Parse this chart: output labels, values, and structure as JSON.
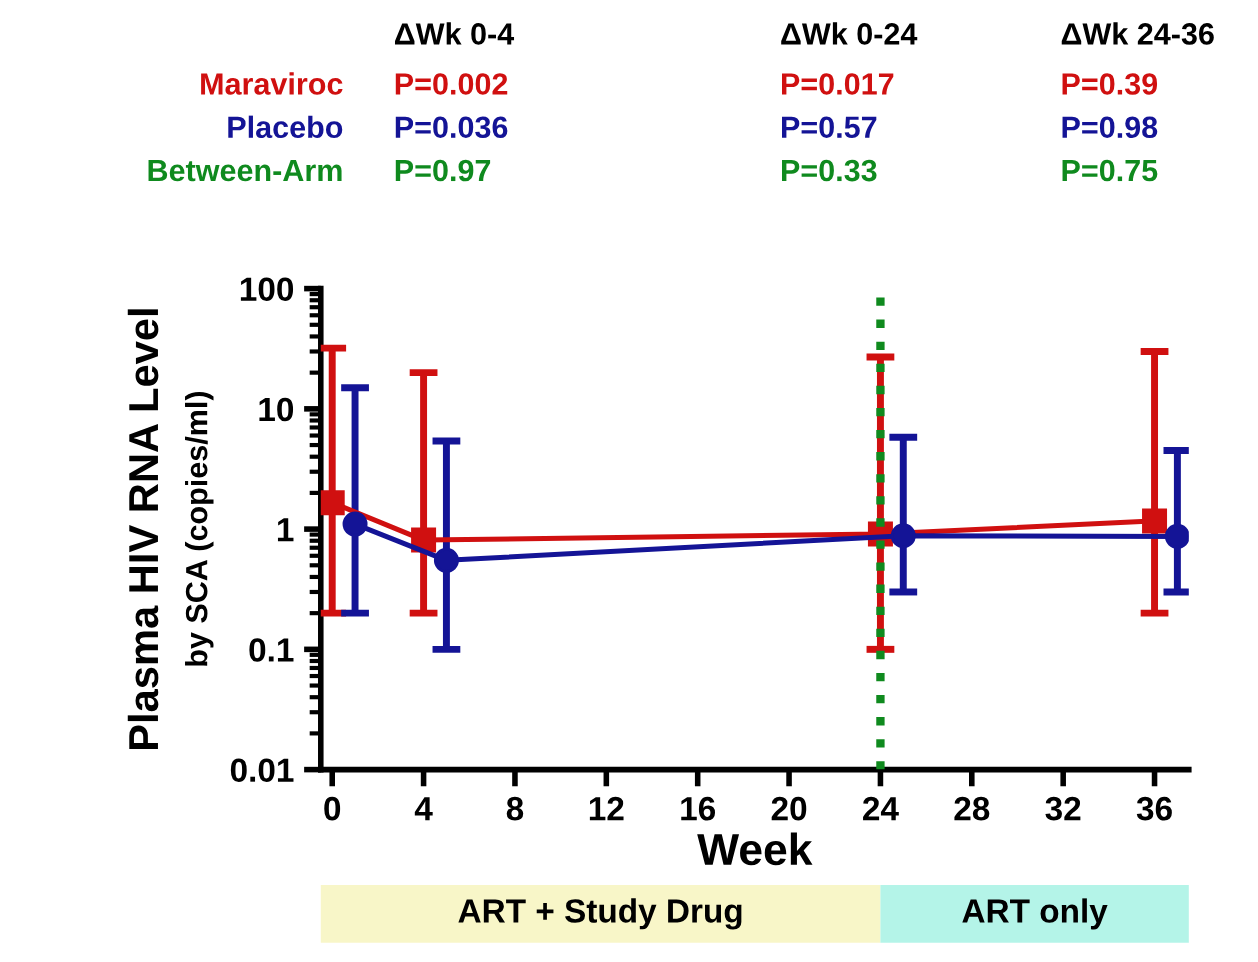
{
  "chart_data": {
    "type": "line",
    "xlabel": "Week",
    "ylabel": "Plasma HIV RNA Level\nby SCA (copies/ml)",
    "log": "y",
    "xlim": [
      -0.5,
      37.5
    ],
    "xticks": [
      0,
      4,
      8,
      12,
      16,
      20,
      24,
      28,
      32,
      36
    ],
    "ylim": [
      0.01,
      100
    ],
    "yticks": [
      0.01,
      0.1,
      1,
      10,
      100
    ],
    "grid": false,
    "series": [
      {
        "name": "Maraviroc",
        "color": "#d01010",
        "marker": "square",
        "x": [
          0,
          4,
          24,
          36
        ],
        "values": [
          1.66,
          0.81,
          0.91,
          1.17
        ],
        "errors": [
          [
            0.2,
            32
          ],
          [
            0.2,
            20
          ],
          [
            0.1,
            27
          ],
          [
            0.2,
            30
          ]
        ]
      },
      {
        "name": "Placebo",
        "color": "#141496",
        "marker": "circle",
        "x": [
          1,
          5,
          25,
          37
        ],
        "values": [
          1.1,
          0.55,
          0.88,
          0.87
        ],
        "errors": [
          [
            0.2,
            15
          ],
          [
            0.1,
            5.4
          ],
          [
            0.3,
            5.8
          ],
          [
            0.3,
            4.5
          ]
        ]
      }
    ],
    "ref_lines": [
      {
        "axis": "x",
        "value": 24,
        "color": "#0f8a1e",
        "line_style": "dotted"
      }
    ],
    "legend": false,
    "annotations": [
      "ΔWk 0-4",
      "ΔWk 0-24",
      "ΔWk 24-36",
      "Between-Arm",
      "P=0.002",
      "P=0.017",
      "P=0.39",
      "P=0.036",
      "P=0.57",
      "P=0.98",
      "P=0.97",
      "P=0.33",
      "P=0.75",
      "ART + Study Drug",
      "ART only"
    ]
  }
}
